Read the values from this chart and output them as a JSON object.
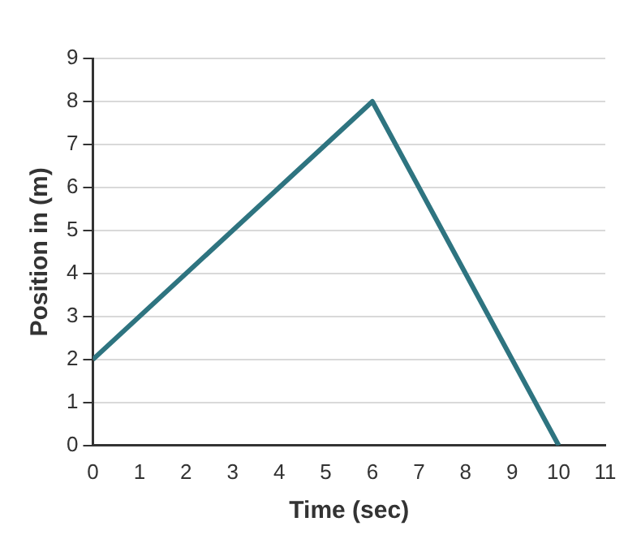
{
  "chart_data": {
    "type": "line",
    "xlabel": "Time (sec)",
    "ylabel": "Position in (m)",
    "x": [
      0,
      6,
      10
    ],
    "series": [
      {
        "color": "#2e7480",
        "values": [
          2,
          8,
          0
        ]
      }
    ],
    "xlim": [
      0,
      11
    ],
    "xticks": [
      0,
      1,
      2,
      3,
      4,
      5,
      6,
      7,
      8,
      9,
      10,
      11
    ],
    "ylim": [
      0,
      9
    ],
    "yticks": [
      0,
      1,
      2,
      3,
      4,
      5,
      6,
      7,
      8,
      9
    ],
    "grid": "y",
    "legend": false,
    "marker": "none",
    "line_style": "solid"
  }
}
